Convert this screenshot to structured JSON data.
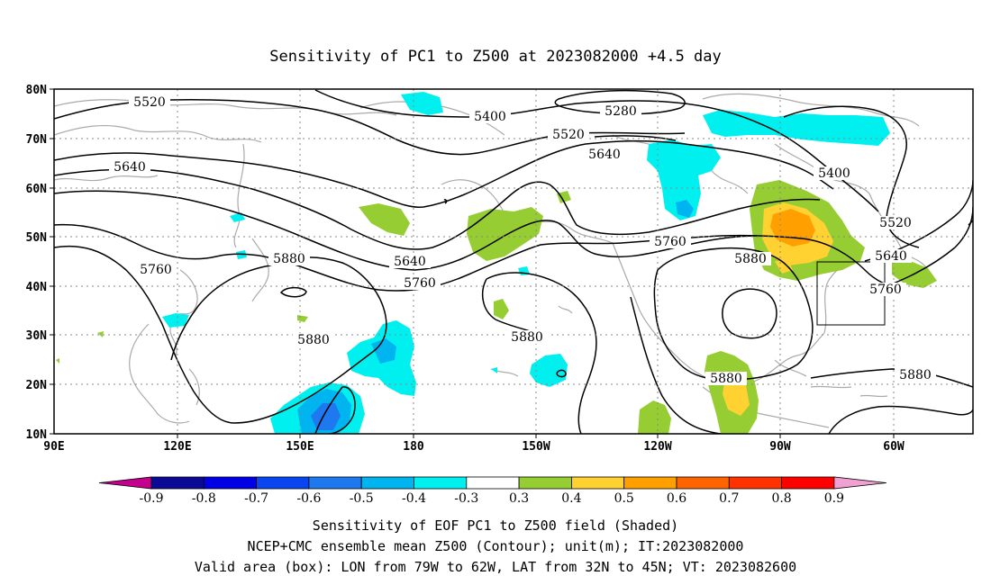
{
  "title": "Sensitivity of PC1 to Z500 at 2023082000 +4.5 day",
  "lat_labels": [
    "80N",
    "70N",
    "60N",
    "50N",
    "40N",
    "30N",
    "20N",
    "10N"
  ],
  "lon_labels": [
    "90E",
    "120E",
    "150E",
    "180",
    "150W",
    "120W",
    "90W",
    "60W"
  ],
  "contour_labels": [
    "5520",
    "5400",
    "5280",
    "5520",
    "5640",
    "5400",
    "5520",
    "5640",
    "5640",
    "5760",
    "5880",
    "5640",
    "5760",
    "5880",
    "5880",
    "5880",
    "5880",
    "5760",
    "5880"
  ],
  "colorbar": {
    "labels": [
      "-0.9",
      "-0.8",
      "-0.7",
      "-0.6",
      "-0.5",
      "-0.4",
      "-0.3",
      "0.3",
      "0.4",
      "0.5",
      "0.6",
      "0.7",
      "0.8",
      "0.9"
    ],
    "colors": [
      "#c4008c",
      "#0a0a96",
      "#0000e6",
      "#0a46f0",
      "#1e78f0",
      "#00b4f0",
      "#00f0f0",
      "#ffffff",
      "#96cd32",
      "#ffd232",
      "#ffa000",
      "#ff6400",
      "#ff3200",
      "#ff0000",
      "#f0a0d2"
    ]
  },
  "caption": [
    "Sensitivity of EOF PC1 to Z500 field (Shaded)",
    "NCEP+CMC ensemble mean Z500 (Contour); unit(m); IT:2023082000",
    "Valid area (box): LON from 79W to 62W, LAT from 32N to 45N; VT: 2023082600"
  ]
}
